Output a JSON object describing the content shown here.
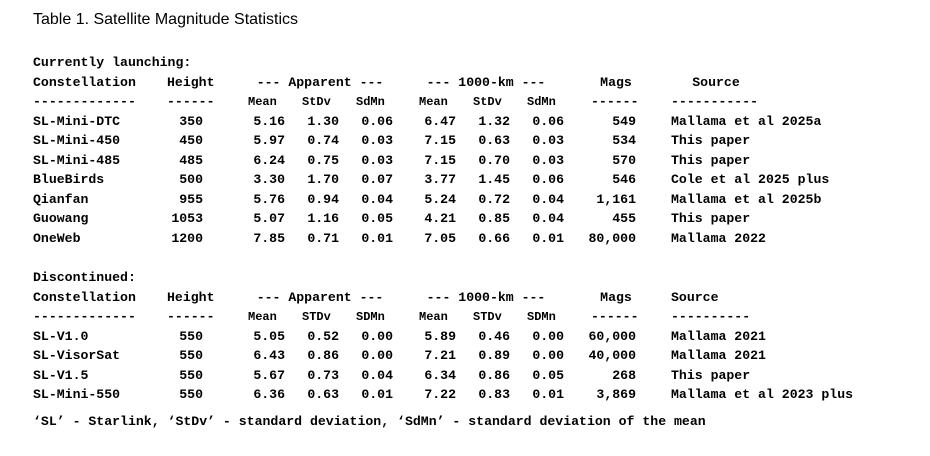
{
  "title": "Table 1. Satellite Magnitude Statistics",
  "sections": [
    {
      "heading": "Currently launching:",
      "header": {
        "constellation": "Constellation",
        "height": "Height",
        "apparent": "--- Apparent ---",
        "km1000": "--- 1000-km ---",
        "mags": "Mags",
        "source": "Source"
      },
      "dashes": {
        "constellation": "-------------",
        "height": "------",
        "mags": "------",
        "source": "-----------"
      },
      "subheader": {
        "mean": "Mean",
        "stdv": "StDv",
        "sdmn": "SdMn",
        "mean2": "Mean",
        "stdv2": "StDv",
        "sdmn2": "SdMn"
      },
      "rows": [
        [
          "SL-Mini-DTC",
          "350",
          "5.16",
          "1.30",
          "0.06",
          "6.47",
          "1.32",
          "0.06",
          "549",
          "Mallama et al 2025a"
        ],
        [
          "SL-Mini-450",
          "450",
          "5.97",
          "0.74",
          "0.03",
          "7.15",
          "0.63",
          "0.03",
          "534",
          "This paper"
        ],
        [
          "SL-Mini-485",
          "485",
          "6.24",
          "0.75",
          "0.03",
          "7.15",
          "0.70",
          "0.03",
          "570",
          "This paper"
        ],
        [
          "BlueBirds",
          "500",
          "3.30",
          "1.70",
          "0.07",
          "3.77",
          "1.45",
          "0.06",
          "546",
          "Cole et al 2025 plus"
        ],
        [
          "Qianfan",
          "955",
          "5.76",
          "0.94",
          "0.04",
          "5.24",
          "0.72",
          "0.04",
          "1,161",
          "Mallama et al 2025b"
        ],
        [
          "Guowang",
          "1053",
          "5.07",
          "1.16",
          "0.05",
          "4.21",
          "0.85",
          "0.04",
          "455",
          "This paper"
        ],
        [
          "OneWeb",
          "1200",
          "7.85",
          "0.71",
          "0.01",
          "7.05",
          "0.66",
          "0.01",
          "80,000",
          "Mallama 2022"
        ]
      ]
    },
    {
      "heading": "Discontinued:",
      "header": {
        "constellation": "Constellation",
        "height": "Height",
        "apparent": "--- Apparent ---",
        "km1000": "--- 1000-km ---",
        "mags": "Mags",
        "source": "Source"
      },
      "dashes": {
        "constellation": "-------------",
        "height": "------",
        "mags": "------",
        "source": "----------"
      },
      "subheader": {
        "mean": "Mean",
        "stdv": "STDv",
        "sdmn": "SDMn",
        "mean2": "Mean",
        "stdv2": "STDv",
        "sdmn2": "SDMn"
      },
      "rows": [
        [
          "SL-V1.0",
          "550",
          "5.05",
          "0.52",
          "0.00",
          "5.89",
          "0.46",
          "0.00",
          "60,000",
          "Mallama 2021"
        ],
        [
          "SL-VisorSat",
          "550",
          "6.43",
          "0.86",
          "0.00",
          "7.21",
          "0.89",
          "0.00",
          "40,000",
          "Mallama 2021"
        ],
        [
          "SL-V1.5",
          "550",
          "5.67",
          "0.73",
          "0.04",
          "6.34",
          "0.86",
          "0.05",
          "268",
          "This paper"
        ],
        [
          "SL-Mini-550",
          "550",
          "6.36",
          "0.63",
          "0.01",
          "7.22",
          "0.83",
          "0.01",
          "3,869",
          "Mallama et al 2023 plus"
        ]
      ]
    }
  ],
  "footnote": "‘SL’ - Starlink, ‘StDv’ - standard deviation, ‘SdMn’ - standard deviation of the mean"
}
